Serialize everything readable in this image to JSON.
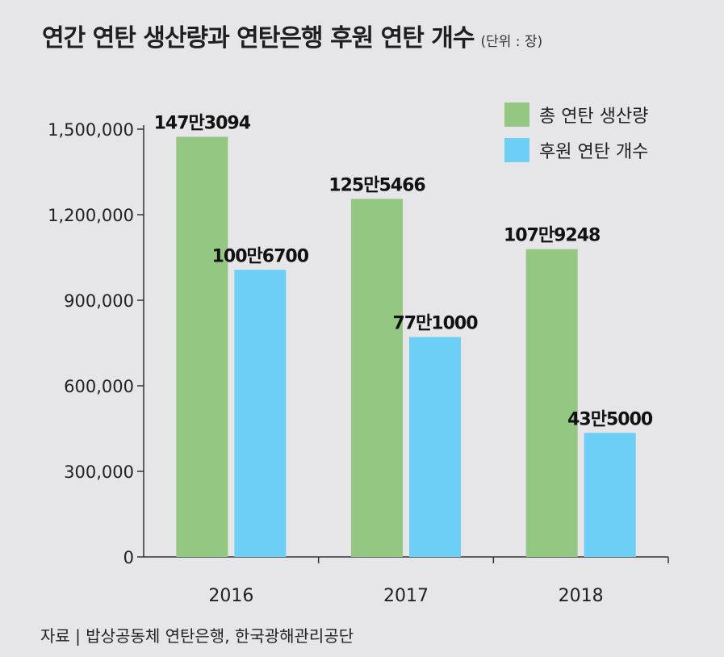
{
  "title": "연간 연탄 생산량과 연탄은행 후원 연탄 개수",
  "unit": "(단위 : 장)",
  "source": "자료 | 밥상공동체 연탄은행, 한국광해관리공단",
  "colors": {
    "production": "#93c782",
    "donation": "#6dcff5",
    "axis": "#333333",
    "background": "#e6e6e8"
  },
  "chart_data": {
    "type": "bar",
    "title": "연간 연탄 생산량과 연탄은행 후원 연탄 개수",
    "unit": "(단위 : 장)",
    "categories": [
      "2016",
      "2017",
      "2018"
    ],
    "series": [
      {
        "name": "총 연탄 생산량",
        "values": [
          1473094,
          1255466,
          1079248
        ],
        "labels": [
          "147만3094",
          "125만5466",
          "107만9248"
        ],
        "color": "#93c782"
      },
      {
        "name": "후원 연탄 개수",
        "values": [
          1006700,
          771000,
          435000
        ],
        "labels": [
          "100만6700",
          "77만1000",
          "43만5000"
        ],
        "color": "#6dcff5"
      }
    ],
    "ylim": [
      0,
      1500000
    ],
    "yticks": [
      0,
      300000,
      600000,
      900000,
      1200000,
      1500000
    ],
    "ytick_labels": [
      "0",
      "300,000",
      "600,000",
      "900,000",
      "1,200,000",
      "1,500,000"
    ],
    "grid": false,
    "legend": "top-right"
  }
}
